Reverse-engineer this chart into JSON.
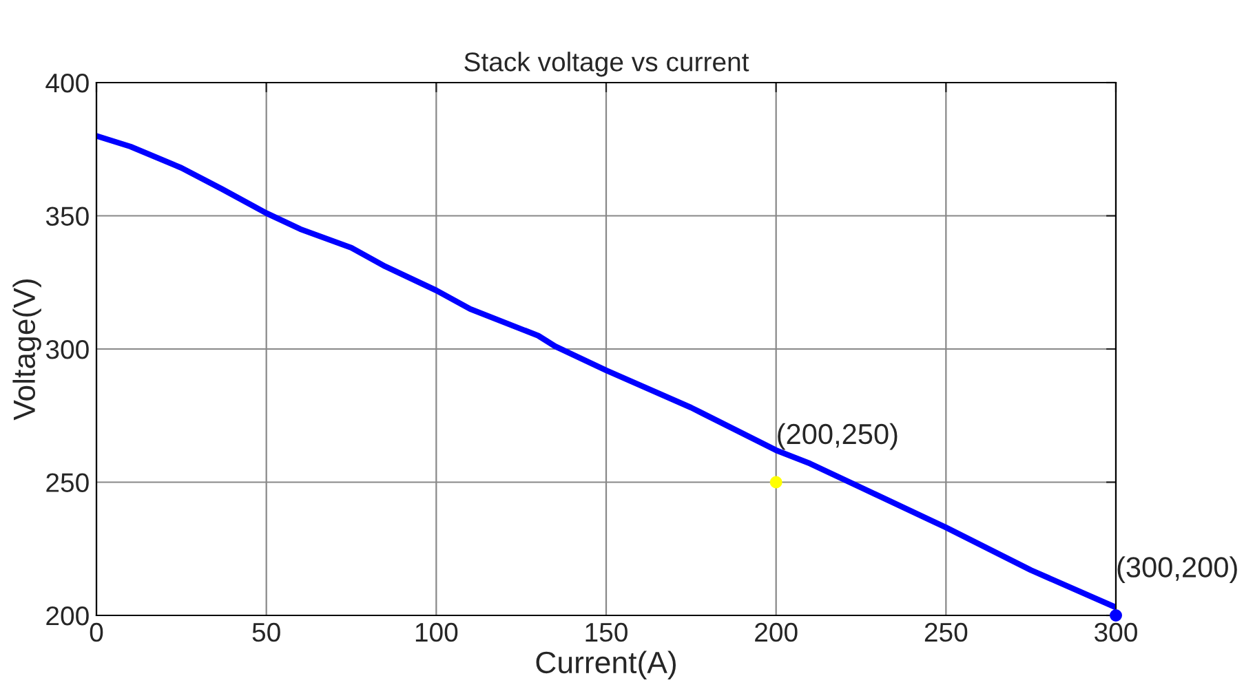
{
  "chart_data": {
    "type": "line",
    "title": "Stack voltage vs current",
    "xlabel": "Current(A)",
    "ylabel": "Voltage(V)",
    "xlim": [
      0,
      300
    ],
    "xticks": [
      0,
      50,
      100,
      150,
      200,
      250,
      300
    ],
    "ylim": [
      200,
      400
    ],
    "yticks": [
      200,
      250,
      300,
      350,
      400
    ],
    "grid": true,
    "legend": false,
    "series": [
      {
        "color": "#0000ff",
        "x": [
          0,
          10,
          25,
          37,
          50,
          60,
          75,
          85,
          100,
          110,
          130,
          135,
          150,
          175,
          200,
          210,
          225,
          250,
          275,
          300
        ],
        "values": [
          380,
          376,
          368,
          360,
          351,
          345,
          338,
          331,
          322,
          315,
          305,
          301,
          292,
          278,
          262,
          257,
          248,
          233,
          217,
          203
        ]
      },
      {
        "type": "scatter",
        "color": "#ffff00",
        "x": [
          200
        ],
        "values": [
          250
        ]
      },
      {
        "type": "scatter",
        "color": "#0000ff",
        "x": [
          300
        ],
        "values": [
          200
        ]
      }
    ],
    "annotations": [
      {
        "text": "(200,250)",
        "x": 200,
        "y": 250
      },
      {
        "text": "(300,200)",
        "x": 300,
        "y": 200
      }
    ]
  }
}
